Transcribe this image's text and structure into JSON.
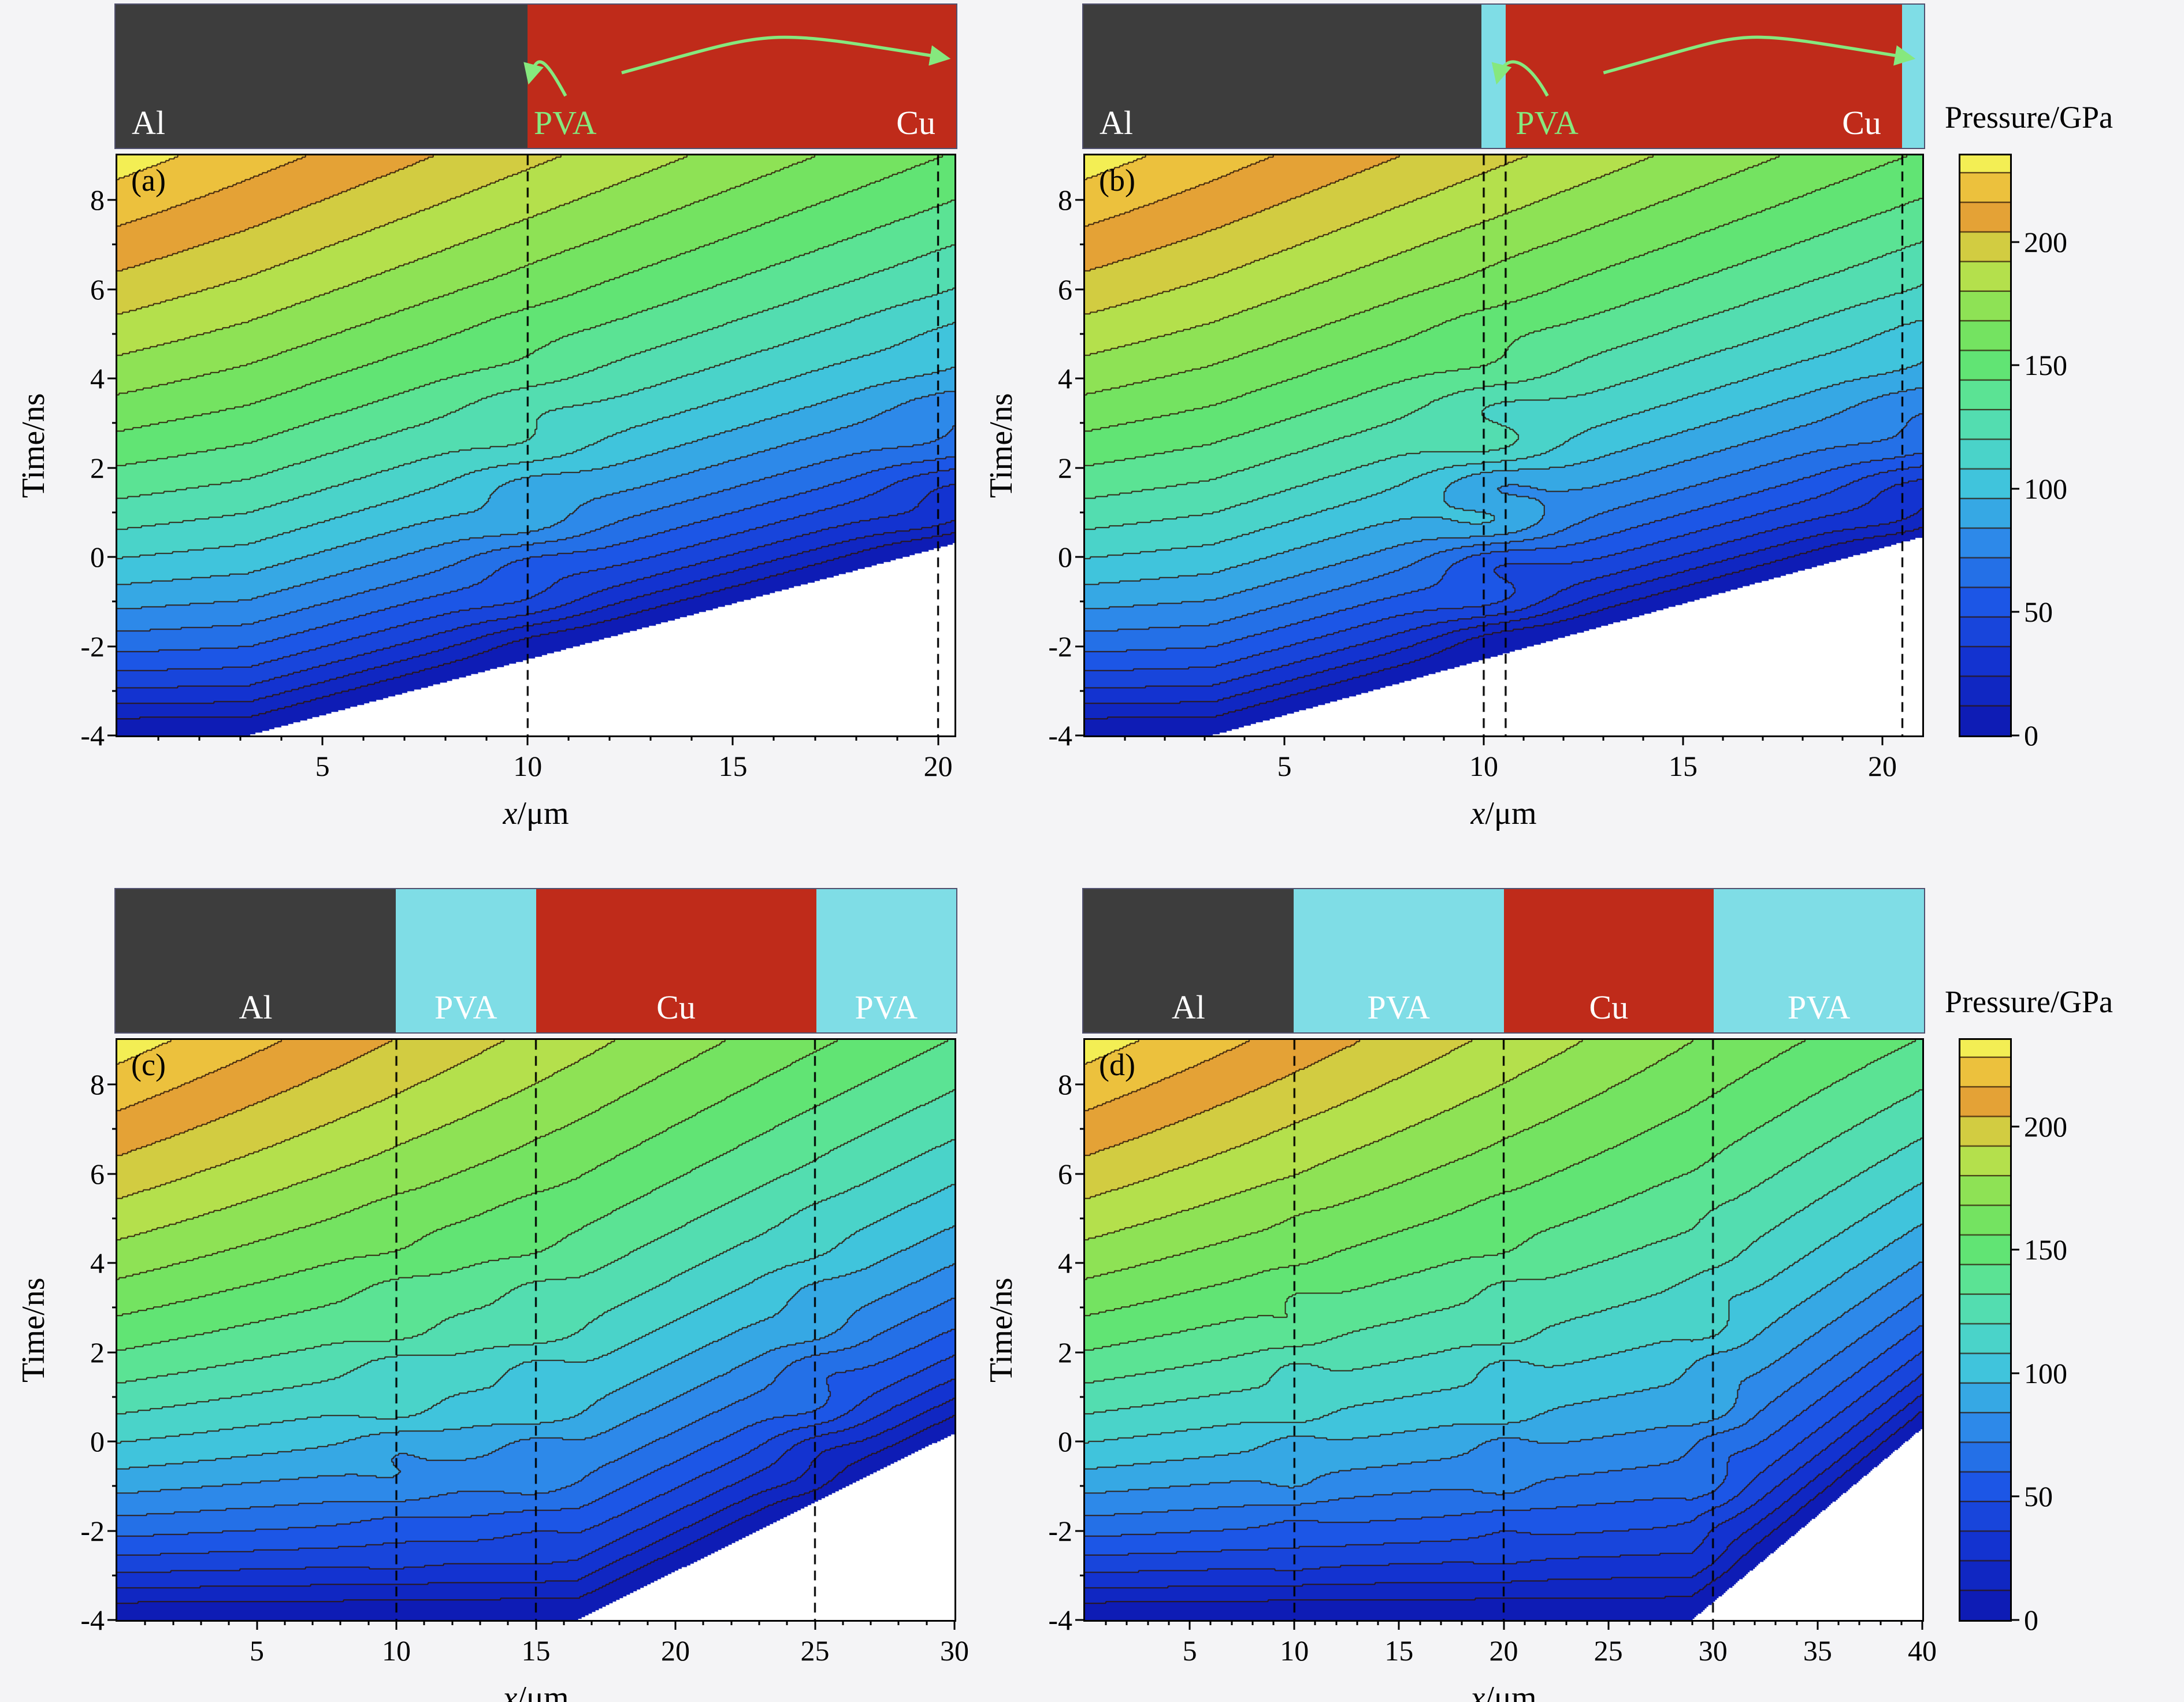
{
  "figure": {
    "background": "#f4f4f6",
    "plot_background": "#ffffff"
  },
  "colorbar": {
    "title": "Pressure/GPa",
    "ticks": [
      0,
      50,
      100,
      150,
      200
    ],
    "vmin": 0,
    "vmax": 235,
    "level_step_gpa": 12
  },
  "colormap_stops": [
    [
      0,
      "#0c16ae"
    ],
    [
      30,
      "#1332cf"
    ],
    [
      55,
      "#1c57e6"
    ],
    [
      80,
      "#2e8ce9"
    ],
    [
      100,
      "#3ec1e0"
    ],
    [
      120,
      "#4fd9c0"
    ],
    [
      140,
      "#5ce491"
    ],
    [
      155,
      "#63e468"
    ],
    [
      175,
      "#8fe255"
    ],
    [
      190,
      "#bfdf4a"
    ],
    [
      203,
      "#dcc23c"
    ],
    [
      214,
      "#e89433"
    ],
    [
      224,
      "#edc83f"
    ],
    [
      235,
      "#f3ef55"
    ]
  ],
  "contour_line_color": "rgba(45,22,8,0.9)",
  "materials_palette": {
    "Al": "#3d3d3d",
    "Cu": "#bf2b1a",
    "PVA": "#7fdde6"
  },
  "annotation_green": "#86e87e",
  "chart_data": [
    {
      "type": "contour",
      "label": "(a)",
      "xlabel_var": "x",
      "xlabel_unit": "/μm",
      "ylabel": "Time/ns",
      "xlim": [
        0,
        20.4
      ],
      "ylim": [
        -4,
        9
      ],
      "xticks": [
        5,
        10,
        15,
        20
      ],
      "yticks": [
        -4,
        -2,
        0,
        2,
        4,
        6,
        8
      ],
      "minor_x_step": 1,
      "minor_y_step": 1,
      "interface_lines_x_um": [
        10,
        20
      ],
      "materials": [
        {
          "name": "Al",
          "from": 0,
          "to": 10,
          "color": "#3d3d3d",
          "label": "Al",
          "label_color": "#ffffff",
          "label_pos": "left"
        },
        {
          "name": "Cu",
          "from": 10,
          "to": 20.4,
          "color": "#bf2b1a",
          "label": "Cu",
          "label_color": "#ffffff",
          "label_pos": "right"
        }
      ],
      "pva_annotation": {
        "text": "PVA",
        "x": 10.15,
        "arrow_targets_x_um": [
          10,
          20.2
        ]
      },
      "pressure_field": {
        "arrival_front_x0_um": 3.2,
        "arrival_slope_ns_per_um": 0.25,
        "peak_gpa_at_x0": 248,
        "peak_gpa_decay_per_um": 4.1,
        "no_data_region": "white wedge below shock-arrival front"
      }
    },
    {
      "type": "contour",
      "label": "(b)",
      "xlabel_var": "x",
      "xlabel_unit": "/μm",
      "ylabel": "Time/ns",
      "xlim": [
        0,
        21
      ],
      "ylim": [
        -4,
        9
      ],
      "xticks": [
        5,
        10,
        15,
        20
      ],
      "yticks": [
        -4,
        -2,
        0,
        2,
        4,
        6,
        8
      ],
      "minor_x_step": 1,
      "minor_y_step": 1,
      "interface_lines_x_um": [
        10,
        10.55,
        20.5
      ],
      "materials": [
        {
          "name": "Al",
          "from": 0,
          "to": 9.95,
          "color": "#3d3d3d",
          "label": "Al",
          "label_color": "#ffffff",
          "label_pos": "left"
        },
        {
          "name": "PVA",
          "from": 9.95,
          "to": 10.55,
          "color": "#7fdde6"
        },
        {
          "name": "Cu",
          "from": 10.55,
          "to": 20.45,
          "color": "#bf2b1a",
          "label": "Cu",
          "label_color": "#ffffff",
          "label_pos": "right"
        },
        {
          "name": "PVA",
          "from": 20.45,
          "to": 21,
          "color": "#7fdde6"
        }
      ],
      "pva_annotation": {
        "text": "PVA",
        "x": 10.8,
        "arrow_targets_x_um": [
          10.3,
          20.72
        ]
      },
      "pressure_field": {
        "arrival_front_x0_um": 3.2,
        "arrival_slope_ns_per_um": 0.25,
        "peak_gpa_at_x0": 248,
        "peak_gpa_decay_per_um": 4.0,
        "no_data_region": "white wedge below shock-arrival front"
      }
    },
    {
      "type": "contour",
      "label": "(c)",
      "xlabel_var": "x",
      "xlabel_unit": "/μm",
      "ylabel": "Time/ns",
      "xlim": [
        0,
        30
      ],
      "ylim": [
        -4,
        9
      ],
      "xticks": [
        5,
        10,
        15,
        20,
        25,
        30
      ],
      "yticks": [
        -4,
        -2,
        0,
        2,
        4,
        6,
        8
      ],
      "minor_x_step": 1,
      "minor_y_step": 1,
      "interface_lines_x_um": [
        10,
        15,
        25
      ],
      "materials": [
        {
          "name": "Al",
          "from": 0,
          "to": 10,
          "color": "#3d3d3d",
          "label": "Al",
          "label_color": "#ffffff",
          "label_pos": "center"
        },
        {
          "name": "PVA",
          "from": 10,
          "to": 15,
          "color": "#7fdde6",
          "label": "PVA",
          "label_color": "#ffffff",
          "label_pos": "center"
        },
        {
          "name": "Cu",
          "from": 15,
          "to": 25,
          "color": "#bf2b1a",
          "label": "Cu",
          "label_color": "#ffffff",
          "label_pos": "center"
        },
        {
          "name": "PVA",
          "from": 25,
          "to": 30,
          "color": "#7fdde6",
          "label": "PVA",
          "label_color": "#ffffff",
          "label_pos": "center"
        }
      ],
      "pressure_field": {
        "arrival_front_x0_um": 16.5,
        "arrival_slope_ns_per_um": 0.31,
        "peak_gpa_at_x0": 248,
        "peak_gpa_decay_per_um": 3.2,
        "no_data_region": "white wedge below shock-arrival front"
      }
    },
    {
      "type": "contour",
      "label": "(d)",
      "xlabel_var": "x",
      "xlabel_unit": "/μm",
      "ylabel": "Time/ns",
      "xlim": [
        0,
        40
      ],
      "ylim": [
        -4,
        9
      ],
      "xticks": [
        5,
        10,
        15,
        20,
        25,
        30,
        35,
        40
      ],
      "yticks": [
        -4,
        -2,
        0,
        2,
        4,
        6,
        8
      ],
      "minor_x_step": 1,
      "minor_y_step": 1,
      "interface_lines_x_um": [
        10,
        20,
        30
      ],
      "materials": [
        {
          "name": "Al",
          "from": 0,
          "to": 10,
          "color": "#3d3d3d",
          "label": "Al",
          "label_color": "#ffffff",
          "label_pos": "center"
        },
        {
          "name": "PVA",
          "from": 10,
          "to": 20,
          "color": "#7fdde6",
          "label": "PVA",
          "label_color": "#ffffff",
          "label_pos": "center"
        },
        {
          "name": "Cu",
          "from": 20,
          "to": 30,
          "color": "#bf2b1a",
          "label": "Cu",
          "label_color": "#ffffff",
          "label_pos": "center"
        },
        {
          "name": "PVA",
          "from": 30,
          "to": 40,
          "color": "#7fdde6",
          "label": "PVA",
          "label_color": "#ffffff",
          "label_pos": "center"
        }
      ],
      "pressure_field": {
        "arrival_front_x0_um": 29,
        "arrival_slope_ns_per_um": 0.39,
        "peak_gpa_at_x0": 248,
        "peak_gpa_decay_per_um": 2.4,
        "no_data_region": "white wedge below shock-arrival front"
      }
    }
  ]
}
